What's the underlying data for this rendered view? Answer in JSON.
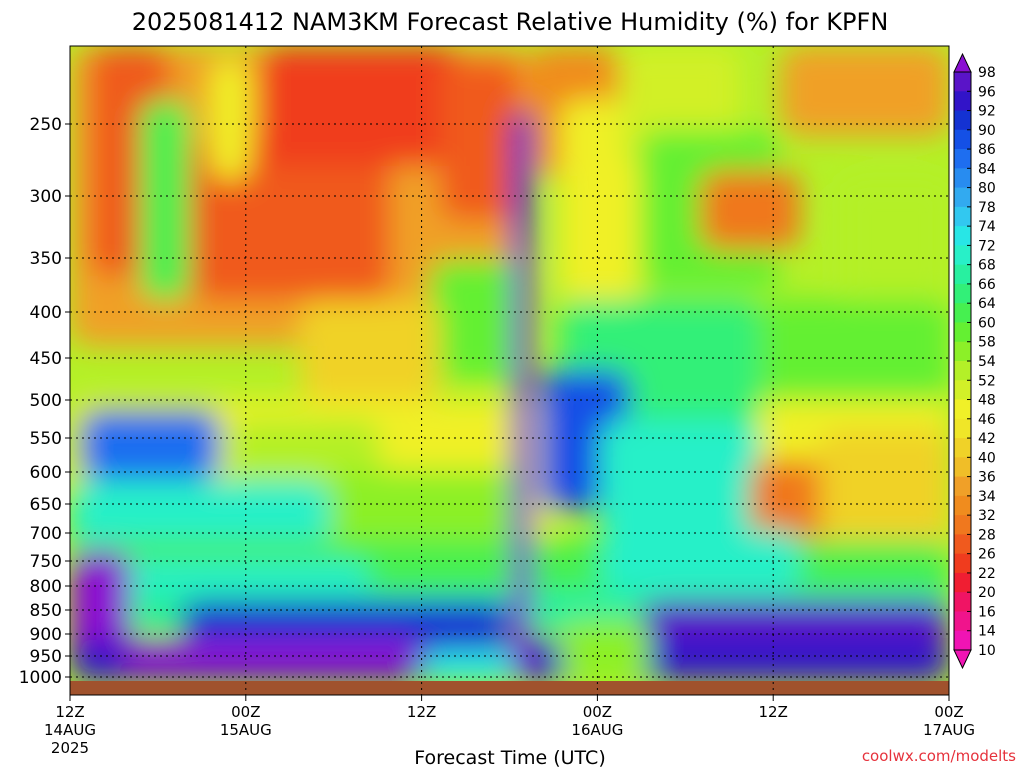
{
  "chart_data": {
    "type": "heatmap",
    "title": "2025081412 NAM3KM Forecast Relative Humidity (%) for KPFN",
    "xlabel": "Forecast Time (UTC)",
    "ylabel": "",
    "y_ticks": [
      "250",
      "300",
      "350",
      "400",
      "450",
      "500",
      "550",
      "600",
      "650",
      "700",
      "750",
      "800",
      "850",
      "900",
      "950",
      "1000"
    ],
    "x_ticks": [
      {
        "hour": "12Z",
        "date": "14AUG",
        "year": "2025"
      },
      {
        "hour": "00Z",
        "date": "15AUG",
        "year": ""
      },
      {
        "hour": "12Z",
        "date": "",
        "year": ""
      },
      {
        "hour": "00Z",
        "date": "16AUG",
        "year": ""
      },
      {
        "hour": "12Z",
        "date": "",
        "year": ""
      },
      {
        "hour": "00Z",
        "date": "17AUG",
        "year": ""
      }
    ],
    "colorbar": {
      "levels": [
        "98",
        "96",
        "92",
        "90",
        "86",
        "84",
        "80",
        "78",
        "74",
        "72",
        "68",
        "66",
        "64",
        "60",
        "58",
        "54",
        "52",
        "48",
        "46",
        "42",
        "40",
        "36",
        "34",
        "32",
        "28",
        "26",
        "22",
        "20",
        "16",
        "14",
        "10"
      ],
      "colors": [
        "#8a0fd2",
        "#5a14c8",
        "#3214c8",
        "#1432d2",
        "#1450e6",
        "#1e6ef0",
        "#288cf0",
        "#32aaf0",
        "#32c8f0",
        "#28e6e6",
        "#28f0c8",
        "#28f0a0",
        "#32f078",
        "#46f050",
        "#64f032",
        "#8cf028",
        "#b4f028",
        "#d2f028",
        "#f0f028",
        "#f0e628",
        "#f0d228",
        "#f0be28",
        "#f0a028",
        "#f08c1e",
        "#f0781e",
        "#f05a1e",
        "#f03c1e",
        "#f01e32",
        "#f01464",
        "#f0148c",
        "#f014b4"
      ]
    },
    "grid": true,
    "credit": "coolwx.com/modelts"
  }
}
